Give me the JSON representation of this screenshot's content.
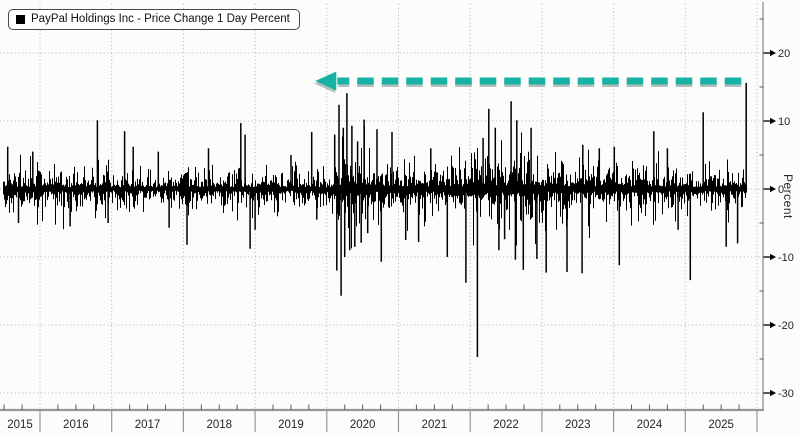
{
  "legend": {
    "label": "PayPal Holdings Inc - Price Change 1 Day Percent",
    "marker_color": "#000000"
  },
  "y_axis": {
    "label": "Percent",
    "tick_labels": [
      "20",
      "10",
      "0",
      "-10",
      "-20",
      "-30"
    ],
    "tick_values": [
      20,
      10,
      0,
      -10,
      -20,
      -30
    ],
    "minor_tick_values": [
      25,
      15,
      5,
      -5,
      -15,
      -25
    ]
  },
  "x_axis": {
    "year_labels": [
      "2015",
      "2016",
      "2017",
      "2018",
      "2019",
      "2020",
      "2021",
      "2022",
      "2023",
      "2024",
      "2025"
    ]
  },
  "annotation": {
    "type": "dashed-arrow",
    "direction": "left",
    "color": "#17b2a3",
    "shadow_color": "rgba(70,100,96,0.40)",
    "y_value_percent": 16,
    "x_start_year": 2025.78,
    "x_end_year": 2019.84
  },
  "colors": {
    "background": "#fcfcfc",
    "bars": "#000000",
    "grid": "#aeaeae",
    "axis": "#979797",
    "tick_text": "#262626"
  },
  "chart_data": {
    "type": "bar",
    "series_name": "PayPal Holdings Inc - Price Change 1 Day Percent",
    "title": "",
    "xlabel": "",
    "ylabel": "Percent",
    "unit": "percent",
    "ylim": [
      -32.5,
      27.5
    ],
    "x_range_years": [
      2015.5,
      2025.85
    ],
    "grid": "dotted",
    "legend_position": "top-left",
    "bar_color": "#000000",
    "volatility_profile": [
      {
        "from": 2015.5,
        "to": 2016.35,
        "sigma": 1.7
      },
      {
        "from": 2016.35,
        "to": 2017.0,
        "sigma": 1.4
      },
      {
        "from": 2017.0,
        "to": 2018.0,
        "sigma": 1.1
      },
      {
        "from": 2018.0,
        "to": 2019.15,
        "sigma": 1.5
      },
      {
        "from": 2019.15,
        "to": 2020.08,
        "sigma": 1.3
      },
      {
        "from": 2020.08,
        "to": 2020.6,
        "sigma": 3.0
      },
      {
        "from": 2020.6,
        "to": 2021.0,
        "sigma": 2.1
      },
      {
        "from": 2021.0,
        "to": 2022.0,
        "sigma": 2.0
      },
      {
        "from": 2022.0,
        "to": 2023.0,
        "sigma": 2.7
      },
      {
        "from": 2023.0,
        "to": 2024.0,
        "sigma": 2.0
      },
      {
        "from": 2024.0,
        "to": 2025.0,
        "sigma": 1.8
      },
      {
        "from": 2025.0,
        "to": 2025.86,
        "sigma": 1.6
      }
    ],
    "notable_moves": [
      {
        "year": 2015.55,
        "pct": 6.2
      },
      {
        "year": 2015.7,
        "pct": -5.0
      },
      {
        "year": 2015.9,
        "pct": 5.5
      },
      {
        "year": 2016.42,
        "pct": -5.5
      },
      {
        "year": 2016.8,
        "pct": 10.1
      },
      {
        "year": 2016.95,
        "pct": -5.0
      },
      {
        "year": 2017.18,
        "pct": 8.5
      },
      {
        "year": 2017.3,
        "pct": 6.2
      },
      {
        "year": 2017.65,
        "pct": 5.5
      },
      {
        "year": 2017.8,
        "pct": -5.7
      },
      {
        "year": 2018.05,
        "pct": -8.2
      },
      {
        "year": 2018.35,
        "pct": 6.0
      },
      {
        "year": 2018.8,
        "pct": 9.7
      },
      {
        "year": 2018.86,
        "pct": 8.0
      },
      {
        "year": 2018.93,
        "pct": -8.8
      },
      {
        "year": 2019.0,
        "pct": -6.0
      },
      {
        "year": 2019.5,
        "pct": 5.0
      },
      {
        "year": 2019.79,
        "pct": 8.4
      },
      {
        "year": 2019.86,
        "pct": -4.5
      },
      {
        "year": 2020.11,
        "pct": 8.0
      },
      {
        "year": 2020.14,
        "pct": -12.0
      },
      {
        "year": 2020.17,
        "pct": 12.4
      },
      {
        "year": 2020.2,
        "pct": -15.7
      },
      {
        "year": 2020.23,
        "pct": 9.0
      },
      {
        "year": 2020.25,
        "pct": -10.0
      },
      {
        "year": 2020.28,
        "pct": 14.1
      },
      {
        "year": 2020.32,
        "pct": -9.0
      },
      {
        "year": 2020.35,
        "pct": 9.3
      },
      {
        "year": 2020.39,
        "pct": -8.5
      },
      {
        "year": 2020.43,
        "pct": 7.0
      },
      {
        "year": 2020.48,
        "pct": -7.9
      },
      {
        "year": 2020.52,
        "pct": 10.2
      },
      {
        "year": 2020.57,
        "pct": -6.5
      },
      {
        "year": 2020.7,
        "pct": 8.8
      },
      {
        "year": 2020.76,
        "pct": -10.7
      },
      {
        "year": 2020.91,
        "pct": 8.4
      },
      {
        "year": 2021.1,
        "pct": -7.5
      },
      {
        "year": 2021.28,
        "pct": -7.8
      },
      {
        "year": 2021.45,
        "pct": 6.0
      },
      {
        "year": 2021.68,
        "pct": -10.0
      },
      {
        "year": 2021.94,
        "pct": -13.8
      },
      {
        "year": 2022.1,
        "pct": -24.7
      },
      {
        "year": 2022.18,
        "pct": 7.5
      },
      {
        "year": 2022.26,
        "pct": 11.8
      },
      {
        "year": 2022.35,
        "pct": 9.0
      },
      {
        "year": 2022.4,
        "pct": -9.0
      },
      {
        "year": 2022.48,
        "pct": -7.4
      },
      {
        "year": 2022.57,
        "pct": 12.9
      },
      {
        "year": 2022.63,
        "pct": -10.4
      },
      {
        "year": 2022.65,
        "pct": 10.1
      },
      {
        "year": 2022.74,
        "pct": -11.9
      },
      {
        "year": 2022.85,
        "pct": 9.0
      },
      {
        "year": 2022.93,
        "pct": -10.3
      },
      {
        "year": 2023.06,
        "pct": -12.3
      },
      {
        "year": 2023.35,
        "pct": -12.2
      },
      {
        "year": 2023.56,
        "pct": -12.4
      },
      {
        "year": 2023.57,
        "pct": 6.5
      },
      {
        "year": 2023.8,
        "pct": 6.0
      },
      {
        "year": 2024.01,
        "pct": 6.2
      },
      {
        "year": 2024.08,
        "pct": -11.2
      },
      {
        "year": 2024.56,
        "pct": 8.5
      },
      {
        "year": 2024.75,
        "pct": 6.0
      },
      {
        "year": 2024.9,
        "pct": -6.0
      },
      {
        "year": 2025.07,
        "pct": -13.4
      },
      {
        "year": 2025.25,
        "pct": 11.3
      },
      {
        "year": 2025.57,
        "pct": -8.5
      },
      {
        "year": 2025.73,
        "pct": -8.0
      },
      {
        "year": 2025.85,
        "pct": 15.6
      }
    ],
    "last_point": {
      "year": 2025.85,
      "pct": 15.6
    }
  }
}
